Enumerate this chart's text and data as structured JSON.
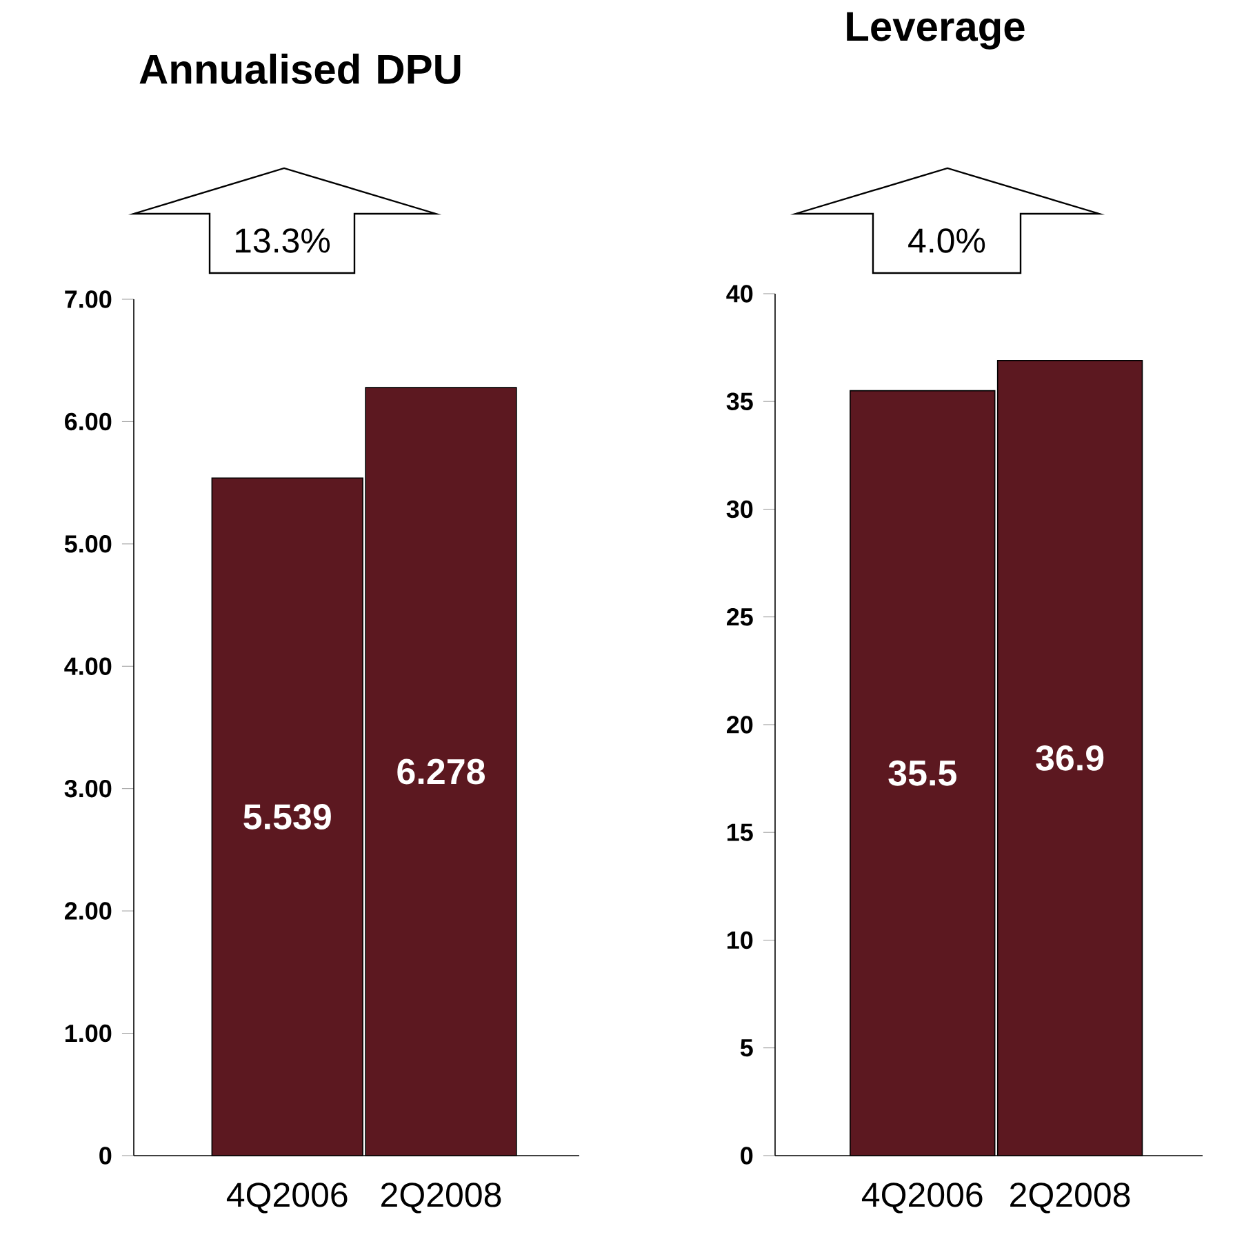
{
  "chart_data": [
    {
      "type": "bar",
      "title": "Annualised DPU",
      "categories": [
        "4Q2006",
        "2Q2008"
      ],
      "values": [
        5.539,
        6.278
      ],
      "color": "#5c1820",
      "data_labels": true,
      "ylim": [
        0,
        7
      ],
      "yticks": [
        {
          "value": 0,
          "label": "0"
        },
        {
          "value": 1,
          "label": "1.00"
        },
        {
          "value": 2,
          "label": "2.00"
        },
        {
          "value": 3,
          "label": "3.00"
        },
        {
          "value": 4,
          "label": "4.00"
        },
        {
          "value": 5,
          "label": "5.00"
        },
        {
          "value": 6,
          "label": "6.00"
        },
        {
          "value": 7,
          "label": "7.00"
        }
      ],
      "annotations": [
        "13.3%"
      ]
    },
    {
      "type": "bar",
      "title": "Leverage",
      "categories": [
        "4Q2006",
        "2Q2008"
      ],
      "values": [
        35.5,
        36.9
      ],
      "color": "#5c1820",
      "data_labels": true,
      "ylim": [
        0,
        40
      ],
      "yticks": [
        0,
        5,
        10,
        15,
        20,
        25,
        30,
        35,
        40
      ],
      "annotations": [
        "4.0%"
      ]
    }
  ]
}
